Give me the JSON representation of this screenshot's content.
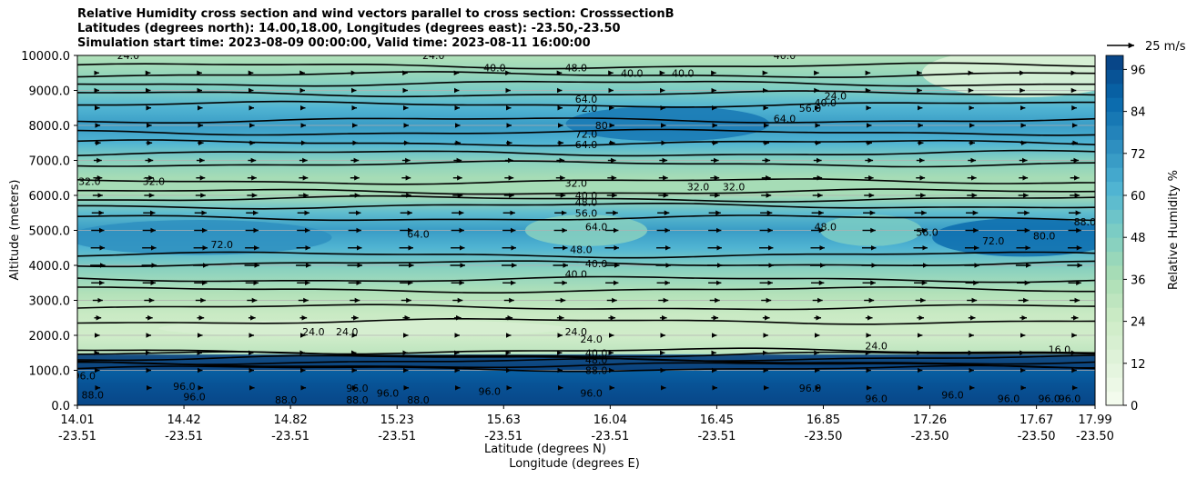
{
  "chart_data": {
    "type": "contour",
    "title_lines": [
      "Relative Humidity cross section and wind vectors parallel to cross section: CrosssectionB",
      "Latitudes (degrees north): 14.00,18.00, Longitudes (degrees east): -23.50,-23.50",
      "Simulation start time: 2023-08-09 00:00:00, Valid time: 2023-08-11 16:00:00"
    ],
    "ylabel": "Altitude (meters)",
    "xlabel_lat": "Latitude (degrees N)",
    "xlabel_lon": "Longitude (degrees E)",
    "ylim": [
      0,
      10000
    ],
    "yticks": [
      "0.0",
      "1000.0",
      "2000.0",
      "3000.0",
      "4000.0",
      "5000.0",
      "6000.0",
      "7000.0",
      "8000.0",
      "9000.0",
      "10000.0"
    ],
    "xticks": [
      {
        "lat": "14.01",
        "lon": "-23.51"
      },
      {
        "lat": "14.42",
        "lon": "-23.51"
      },
      {
        "lat": "14.82",
        "lon": "-23.51"
      },
      {
        "lat": "15.23",
        "lon": "-23.51"
      },
      {
        "lat": "15.63",
        "lon": "-23.51"
      },
      {
        "lat": "16.04",
        "lon": "-23.51"
      },
      {
        "lat": "16.45",
        "lon": "-23.51"
      },
      {
        "lat": "16.85",
        "lon": "-23.50"
      },
      {
        "lat": "17.26",
        "lon": "-23.50"
      },
      {
        "lat": "17.67",
        "lon": "-23.50"
      },
      {
        "lat": "17.99",
        "lon": "-23.50"
      }
    ],
    "colorbar": {
      "label": "Relative Humidity %",
      "min": 0,
      "max": 100,
      "step": 4,
      "ticks": [
        "0",
        "12",
        "24",
        "36",
        "48",
        "60",
        "72",
        "84",
        "96"
      ],
      "colors_low_to_high": [
        "#f7fcf0",
        "#e0f3db",
        "#ccebc5",
        "#a8ddb5",
        "#7bccc4",
        "#4eb3d3",
        "#2b8cbe",
        "#0868ac",
        "#084081"
      ]
    },
    "quiver_key": "25 m/s",
    "rh_profile_by_altitude_m": [
      {
        "z": 0,
        "rh": 96
      },
      {
        "z": 600,
        "rh": 94
      },
      {
        "z": 1000,
        "rh": 88
      },
      {
        "z": 1300,
        "rh": 60
      },
      {
        "z": 1500,
        "rh": 28
      },
      {
        "z": 2000,
        "rh": 22
      },
      {
        "z": 2600,
        "rh": 26
      },
      {
        "z": 3200,
        "rh": 34
      },
      {
        "z": 3900,
        "rh": 44
      },
      {
        "z": 4500,
        "rh": 62
      },
      {
        "z": 5000,
        "rh": 70
      },
      {
        "z": 5500,
        "rh": 58
      },
      {
        "z": 6000,
        "rh": 36
      },
      {
        "z": 6500,
        "rh": 38
      },
      {
        "z": 7000,
        "rh": 46
      },
      {
        "z": 7500,
        "rh": 60
      },
      {
        "z": 8000,
        "rh": 70
      },
      {
        "z": 8500,
        "rh": 62
      },
      {
        "z": 9000,
        "rh": 50
      },
      {
        "z": 9500,
        "rh": 40
      },
      {
        "z": 10000,
        "rh": 32
      }
    ],
    "wind_speed_by_altitude_m": [
      {
        "z": 500,
        "u": 5
      },
      {
        "z": 1000,
        "u": 4
      },
      {
        "z": 1500,
        "u": 3
      },
      {
        "z": 2000,
        "u": 4
      },
      {
        "z": 2500,
        "u": 7
      },
      {
        "z": 3000,
        "u": 10
      },
      {
        "z": 3500,
        "u": 13
      },
      {
        "z": 4000,
        "u": 15
      },
      {
        "z": 4500,
        "u": 14
      },
      {
        "z": 5000,
        "u": 13
      },
      {
        "z": 5500,
        "u": 12
      },
      {
        "z": 6000,
        "u": 10
      },
      {
        "z": 6500,
        "u": 9
      },
      {
        "z": 7000,
        "u": 8
      },
      {
        "z": 7500,
        "u": 6
      },
      {
        "z": 8000,
        "u": 5
      },
      {
        "z": 8500,
        "u": 4
      },
      {
        "z": 9000,
        "u": 3
      },
      {
        "z": 9500,
        "u": 2
      }
    ],
    "contour_labels": [
      {
        "text": "24.0",
        "x": 0.05,
        "z": 10000
      },
      {
        "text": "24.0",
        "x": 0.35,
        "z": 10000
      },
      {
        "text": "40.0",
        "x": 0.41,
        "z": 9650
      },
      {
        "text": "48.0",
        "x": 0.49,
        "z": 9650
      },
      {
        "text": "40.0",
        "x": 0.545,
        "z": 9500
      },
      {
        "text": "40.0",
        "x": 0.595,
        "z": 9500
      },
      {
        "text": "40.0",
        "x": 0.695,
        "z": 10000
      },
      {
        "text": "64.0",
        "x": 0.5,
        "z": 8750
      },
      {
        "text": "72.0",
        "x": 0.5,
        "z": 8500
      },
      {
        "text": "80",
        "x": 0.515,
        "z": 8000
      },
      {
        "text": "64.0",
        "x": 0.695,
        "z": 8200
      },
      {
        "text": "56.0",
        "x": 0.72,
        "z": 8500
      },
      {
        "text": "40.0",
        "x": 0.735,
        "z": 8650
      },
      {
        "text": "24.0",
        "x": 0.745,
        "z": 8850
      },
      {
        "text": "72.0",
        "x": 0.5,
        "z": 7750
      },
      {
        "text": "64.0",
        "x": 0.5,
        "z": 7450
      },
      {
        "text": "32.0",
        "x": 0.012,
        "z": 6400
      },
      {
        "text": "32.0",
        "x": 0.075,
        "z": 6400
      },
      {
        "text": "32.0",
        "x": 0.49,
        "z": 6350
      },
      {
        "text": "40.0",
        "x": 0.5,
        "z": 6000
      },
      {
        "text": "48.0",
        "x": 0.5,
        "z": 5800
      },
      {
        "text": "56.0",
        "x": 0.5,
        "z": 5500
      },
      {
        "text": "32.0",
        "x": 0.61,
        "z": 6250
      },
      {
        "text": "32.0",
        "x": 0.645,
        "z": 6250
      },
      {
        "text": "64.0",
        "x": 0.51,
        "z": 5100
      },
      {
        "text": "64.0",
        "x": 0.335,
        "z": 4900
      },
      {
        "text": "72.0",
        "x": 0.142,
        "z": 4600
      },
      {
        "text": "48.0",
        "x": 0.495,
        "z": 4450
      },
      {
        "text": "40.0",
        "x": 0.51,
        "z": 4050
      },
      {
        "text": "40.0",
        "x": 0.49,
        "z": 3750
      },
      {
        "text": "48.0",
        "x": 0.735,
        "z": 5100
      },
      {
        "text": "56.0",
        "x": 0.835,
        "z": 4950
      },
      {
        "text": "72.0",
        "x": 0.9,
        "z": 4700
      },
      {
        "text": "80.0",
        "x": 0.95,
        "z": 4850
      },
      {
        "text": "88.0",
        "x": 0.99,
        "z": 5250
      },
      {
        "text": "24.0",
        "x": 0.232,
        "z": 2100
      },
      {
        "text": "24.0",
        "x": 0.265,
        "z": 2100
      },
      {
        "text": "24.0",
        "x": 0.49,
        "z": 2100
      },
      {
        "text": "24.0",
        "x": 0.505,
        "z": 1900
      },
      {
        "text": "24.0",
        "x": 0.785,
        "z": 1700
      },
      {
        "text": "16.0",
        "x": 0.965,
        "z": 1600
      },
      {
        "text": "40.0",
        "x": 0.51,
        "z": 1500
      },
      {
        "text": "48.0",
        "x": 0.51,
        "z": 1300
      },
      {
        "text": "88.0",
        "x": 0.51,
        "z": 1000
      },
      {
        "text": "96.0",
        "x": 0.007,
        "z": 850
      },
      {
        "text": "88.0",
        "x": 0.015,
        "z": 300
      },
      {
        "text": "96.0",
        "x": 0.105,
        "z": 550
      },
      {
        "text": "96.0",
        "x": 0.115,
        "z": 250
      },
      {
        "text": "88.0",
        "x": 0.205,
        "z": 150
      },
      {
        "text": "88.0",
        "x": 0.275,
        "z": 150
      },
      {
        "text": "96.0",
        "x": 0.275,
        "z": 500
      },
      {
        "text": "96.0",
        "x": 0.305,
        "z": 350
      },
      {
        "text": "88.0",
        "x": 0.335,
        "z": 150
      },
      {
        "text": "96.0",
        "x": 0.405,
        "z": 400
      },
      {
        "text": "96.0",
        "x": 0.505,
        "z": 350
      },
      {
        "text": "96.0",
        "x": 0.72,
        "z": 500
      },
      {
        "text": "96.0",
        "x": 0.785,
        "z": 200
      },
      {
        "text": "96.0",
        "x": 0.86,
        "z": 300
      },
      {
        "text": "96.0",
        "x": 0.915,
        "z": 200
      },
      {
        "text": "96.0",
        "x": 0.955,
        "z": 200
      },
      {
        "text": "96.0",
        "x": 0.975,
        "z": 200
      }
    ],
    "legend_position": "right (colorbar)"
  }
}
